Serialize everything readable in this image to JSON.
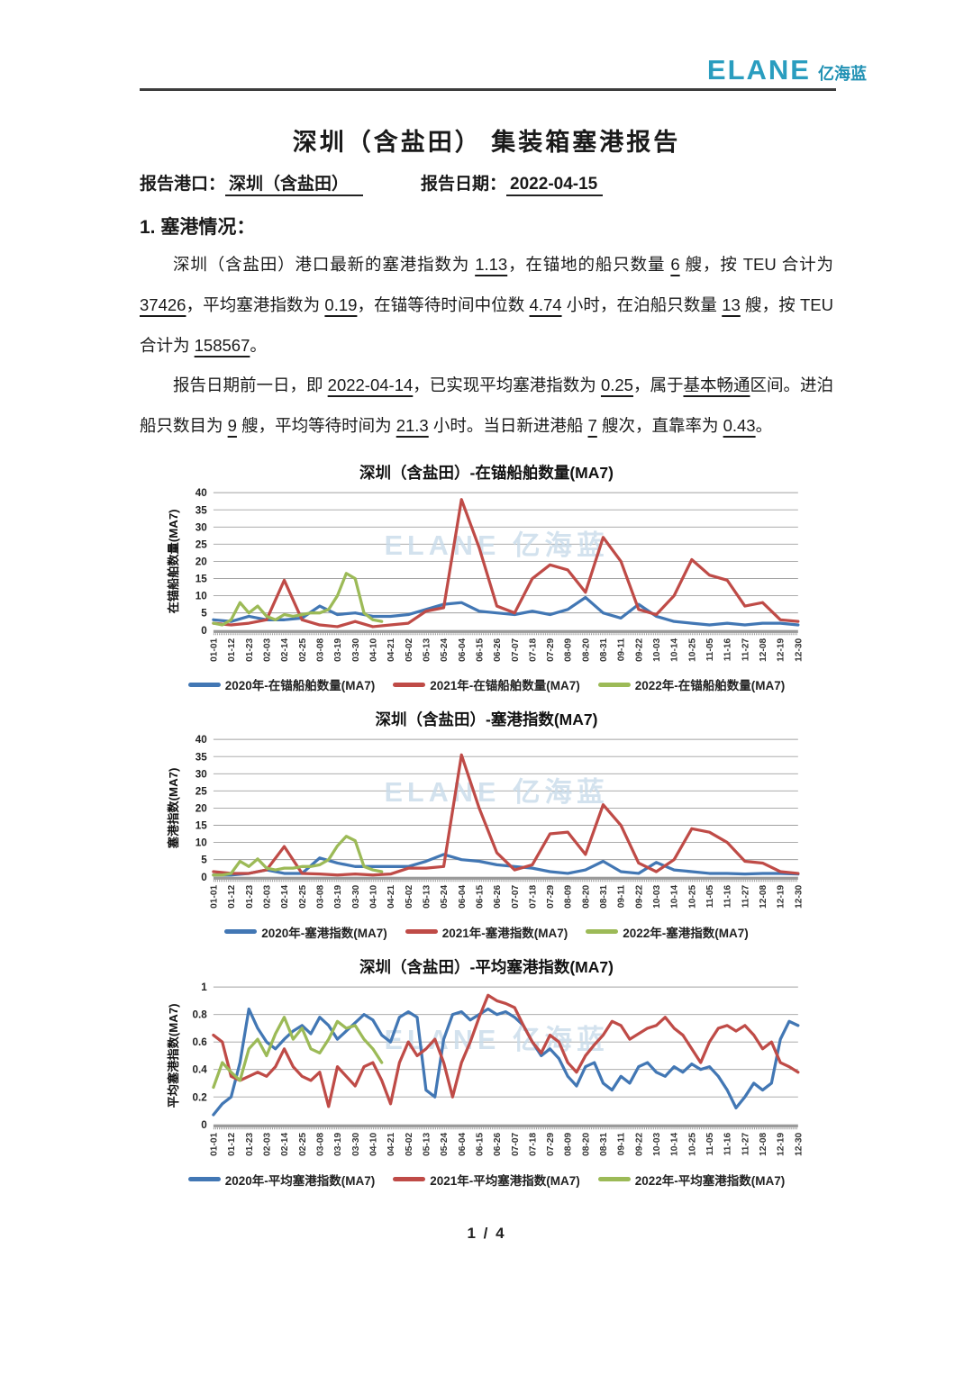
{
  "page": {
    "footer": "1 / 4"
  },
  "header": {
    "logo_en": "ELANE",
    "logo_cn": "亿海蓝"
  },
  "title": "深圳（含盐田） 集装箱塞港报告",
  "report_info": {
    "port_label": "报告港口：",
    "port_value": "深圳（含盐田）",
    "date_label": "报告日期：",
    "date_value": "2022-04-15"
  },
  "section1": {
    "heading": "1. 塞港情况：",
    "paragraphs": [
      [
        {
          "t": "深圳（含盐田）港口最新的塞港指数为 ",
          "u": false
        },
        {
          "t": "1.13",
          "u": true
        },
        {
          "t": "，在锚地的船只数量 ",
          "u": false
        },
        {
          "t": "6",
          "u": true
        },
        {
          "t": " 艘，按 TEU 合计为 ",
          "u": false
        },
        {
          "t": "37426",
          "u": true
        },
        {
          "t": "，平均塞港指数为 ",
          "u": false
        },
        {
          "t": "0.19",
          "u": true
        },
        {
          "t": "，在锚等待时间中位数 ",
          "u": false
        },
        {
          "t": "4.74",
          "u": true
        },
        {
          "t": " 小时，在泊船只数量 ",
          "u": false
        },
        {
          "t": "13",
          "u": true
        },
        {
          "t": " 艘，按 TEU 合计为 ",
          "u": false
        },
        {
          "t": "158567",
          "u": true
        },
        {
          "t": "。",
          "u": false
        }
      ],
      [
        {
          "t": "报告日期前一日，即 ",
          "u": false
        },
        {
          "t": "2022-04-14",
          "u": true
        },
        {
          "t": "，已实现平均塞港指数为 ",
          "u": false
        },
        {
          "t": "0.25",
          "u": true
        },
        {
          "t": "，属于",
          "u": false
        },
        {
          "t": "基本畅通",
          "u": true
        },
        {
          "t": "区间。进泊船只数目为 ",
          "u": false
        },
        {
          "t": "9",
          "u": true
        },
        {
          "t": " 艘，平均等待时间为 ",
          "u": false
        },
        {
          "t": "21.3",
          "u": true
        },
        {
          "t": " 小时。当日新进港船 ",
          "u": false
        },
        {
          "t": "7",
          "u": true
        },
        {
          "t": " 艘次，直靠率为 ",
          "u": false
        },
        {
          "t": "0.43",
          "u": true
        },
        {
          "t": "。",
          "u": false
        }
      ]
    ]
  },
  "colors": {
    "logo": "#2a9dbf",
    "series_2020": "#4277b4",
    "series_2021": "#bf4b47",
    "series_2022": "#9cba57",
    "grid": "#a0a0a0",
    "watermark": "#c9dcea"
  },
  "chart_data": [
    {
      "type": "line",
      "title": "深圳（含盐田）-在锚船舶数量(MA7)",
      "ylabel": "在锚船舶数量(MA7)",
      "xlabel": "",
      "ylim": [
        0,
        40
      ],
      "yticks": [
        0,
        5,
        10,
        15,
        20,
        25,
        30,
        35,
        40
      ],
      "grid": true,
      "legend_position": "bottom",
      "watermark": "ELANE 亿海蓝",
      "categories": [
        "01-01",
        "01-12",
        "01-23",
        "02-03",
        "02-14",
        "02-25",
        "03-08",
        "03-19",
        "03-30",
        "04-10",
        "04-21",
        "05-02",
        "05-13",
        "05-24",
        "06-04",
        "06-15",
        "06-26",
        "07-07",
        "07-18",
        "07-29",
        "08-09",
        "08-20",
        "08-31",
        "09-11",
        "09-22",
        "10-03",
        "10-14",
        "10-25",
        "11-05",
        "11-16",
        "11-27",
        "12-08",
        "12-19",
        "12-30"
      ],
      "series": [
        {
          "name": "2020年-在锚船舶数量(MA7)",
          "color": "#4277b4",
          "step": 1,
          "values": [
            3,
            2.5,
            4,
            3,
            3,
            3.5,
            7,
            4.5,
            5,
            4,
            4,
            4.5,
            6,
            7.5,
            8,
            5.5,
            5,
            4.5,
            5.5,
            4.5,
            6,
            9.5,
            5,
            3.5,
            7.5,
            4,
            2.5,
            2,
            1.5,
            2,
            1.5,
            2,
            2,
            1.5
          ]
        },
        {
          "name": "2021年-在锚船舶数量(MA7)",
          "color": "#bf4b47",
          "step": 1,
          "values": [
            2,
            1.5,
            2,
            3,
            14.5,
            3,
            1.5,
            1,
            2.5,
            1,
            1.5,
            2,
            5.5,
            6.5,
            38,
            24,
            7,
            5,
            15,
            19,
            17.5,
            11,
            27,
            20,
            6,
            4.5,
            10,
            20.5,
            16,
            14.5,
            7,
            8,
            3,
            2.5
          ]
        },
        {
          "name": "2022年-在锚船舶数量(MA7)",
          "color": "#9cba57",
          "step": 0.5,
          "values": [
            2,
            1.5,
            3,
            8,
            5,
            7,
            4,
            3,
            4.5,
            4,
            4.5,
            5,
            5,
            6,
            10,
            16.5,
            15,
            5,
            3,
            2.5
          ]
        }
      ]
    },
    {
      "type": "line",
      "title": "深圳（含盐田）-塞港指数(MA7)",
      "ylabel": "塞港指数(MA7)",
      "xlabel": "",
      "ylim": [
        0,
        40
      ],
      "yticks": [
        0,
        5,
        10,
        15,
        20,
        25,
        30,
        35,
        40
      ],
      "grid": true,
      "legend_position": "bottom",
      "watermark": "ELANE 亿海蓝",
      "categories": [
        "01-01",
        "01-12",
        "01-23",
        "02-03",
        "02-14",
        "02-25",
        "03-08",
        "03-19",
        "03-30",
        "04-10",
        "04-21",
        "05-02",
        "05-13",
        "05-24",
        "06-04",
        "06-15",
        "06-26",
        "07-07",
        "07-18",
        "07-29",
        "08-09",
        "08-20",
        "08-31",
        "09-11",
        "09-22",
        "10-03",
        "10-14",
        "10-25",
        "11-05",
        "11-16",
        "11-27",
        "12-08",
        "12-19",
        "12-30"
      ],
      "series": [
        {
          "name": "2020年-塞港指数(MA7)",
          "color": "#4277b4",
          "step": 1,
          "values": [
            0.5,
            0.5,
            1,
            2,
            1,
            1,
            5.5,
            4,
            3,
            3,
            3,
            3,
            4.5,
            6.5,
            5,
            4.5,
            3.5,
            3,
            2.5,
            1.5,
            1,
            2,
            4.5,
            1.5,
            1,
            4.2,
            2,
            1.5,
            1,
            1,
            0.8,
            1,
            1,
            0.8
          ]
        },
        {
          "name": "2021年-塞港指数(MA7)",
          "color": "#bf4b47",
          "step": 1,
          "values": [
            1.5,
            1,
            1,
            2,
            8.8,
            1,
            0.8,
            0.5,
            0.8,
            0.5,
            0.8,
            2.5,
            2.5,
            3,
            35.5,
            20,
            7,
            2,
            3.5,
            12.5,
            13,
            6.5,
            21,
            15,
            4,
            1.5,
            5,
            14,
            13,
            10,
            4.5,
            4,
            1.5,
            1
          ]
        },
        {
          "name": "2022年-塞港指数(MA7)",
          "color": "#9cba57",
          "step": 0.5,
          "values": [
            0.5,
            0.5,
            1,
            4.5,
            3,
            5.2,
            2.5,
            2,
            2.5,
            2.5,
            3,
            3,
            3.5,
            5,
            9,
            11.8,
            10.5,
            3,
            2,
            1.5
          ]
        }
      ]
    },
    {
      "type": "line",
      "title": "深圳（含盐田）-平均塞港指数(MA7)",
      "ylabel": "平均塞港指数(MA7)",
      "xlabel": "",
      "ylim": [
        0,
        1
      ],
      "yticks": [
        0,
        0.2,
        0.4,
        0.6,
        0.8,
        1
      ],
      "grid": true,
      "legend_position": "bottom",
      "watermark": "ELANE 亿海蓝",
      "categories": [
        "01-01",
        "01-12",
        "01-23",
        "02-03",
        "02-14",
        "02-25",
        "03-08",
        "03-19",
        "03-30",
        "04-10",
        "04-21",
        "05-02",
        "05-13",
        "05-24",
        "06-04",
        "06-15",
        "06-26",
        "07-07",
        "07-18",
        "07-29",
        "08-09",
        "08-20",
        "08-31",
        "09-11",
        "09-22",
        "10-03",
        "10-14",
        "10-25",
        "11-05",
        "11-16",
        "11-27",
        "12-08",
        "12-19",
        "12-30"
      ],
      "series": [
        {
          "name": "2020年-平均塞港指数(MA7)",
          "color": "#4277b4",
          "step": 0.5,
          "values": [
            0.07,
            0.15,
            0.2,
            0.45,
            0.84,
            0.7,
            0.6,
            0.55,
            0.62,
            0.68,
            0.72,
            0.66,
            0.78,
            0.72,
            0.62,
            0.68,
            0.74,
            0.8,
            0.76,
            0.65,
            0.6,
            0.78,
            0.82,
            0.78,
            0.25,
            0.2,
            0.62,
            0.8,
            0.82,
            0.76,
            0.8,
            0.84,
            0.8,
            0.82,
            0.78,
            0.72,
            0.6,
            0.5,
            0.55,
            0.48,
            0.35,
            0.28,
            0.42,
            0.45,
            0.3,
            0.25,
            0.35,
            0.3,
            0.42,
            0.45,
            0.38,
            0.35,
            0.42,
            0.38,
            0.44,
            0.4,
            0.42,
            0.35,
            0.25,
            0.12,
            0.2,
            0.3,
            0.25,
            0.3,
            0.62,
            0.75,
            0.72
          ]
        },
        {
          "name": "2021年-平均塞港指数(MA7)",
          "color": "#bf4b47",
          "step": 0.5,
          "values": [
            0.65,
            0.6,
            0.35,
            0.32,
            0.35,
            0.38,
            0.35,
            0.42,
            0.55,
            0.42,
            0.35,
            0.32,
            0.38,
            0.13,
            0.42,
            0.35,
            0.28,
            0.42,
            0.45,
            0.32,
            0.15,
            0.45,
            0.6,
            0.5,
            0.55,
            0.62,
            0.45,
            0.2,
            0.45,
            0.6,
            0.78,
            0.94,
            0.9,
            0.88,
            0.85,
            0.72,
            0.6,
            0.52,
            0.65,
            0.6,
            0.45,
            0.38,
            0.5,
            0.58,
            0.65,
            0.75,
            0.72,
            0.62,
            0.66,
            0.7,
            0.72,
            0.78,
            0.7,
            0.65,
            0.55,
            0.45,
            0.6,
            0.7,
            0.72,
            0.68,
            0.72,
            0.65,
            0.55,
            0.6,
            0.45,
            0.42,
            0.38
          ]
        },
        {
          "name": "2022年-平均塞港指数(MA7)",
          "color": "#9cba57",
          "step": 0.5,
          "values": [
            0.27,
            0.45,
            0.38,
            0.32,
            0.55,
            0.62,
            0.5,
            0.66,
            0.78,
            0.62,
            0.7,
            0.55,
            0.52,
            0.62,
            0.75,
            0.7,
            0.72,
            0.62,
            0.55,
            0.45
          ]
        }
      ]
    }
  ]
}
